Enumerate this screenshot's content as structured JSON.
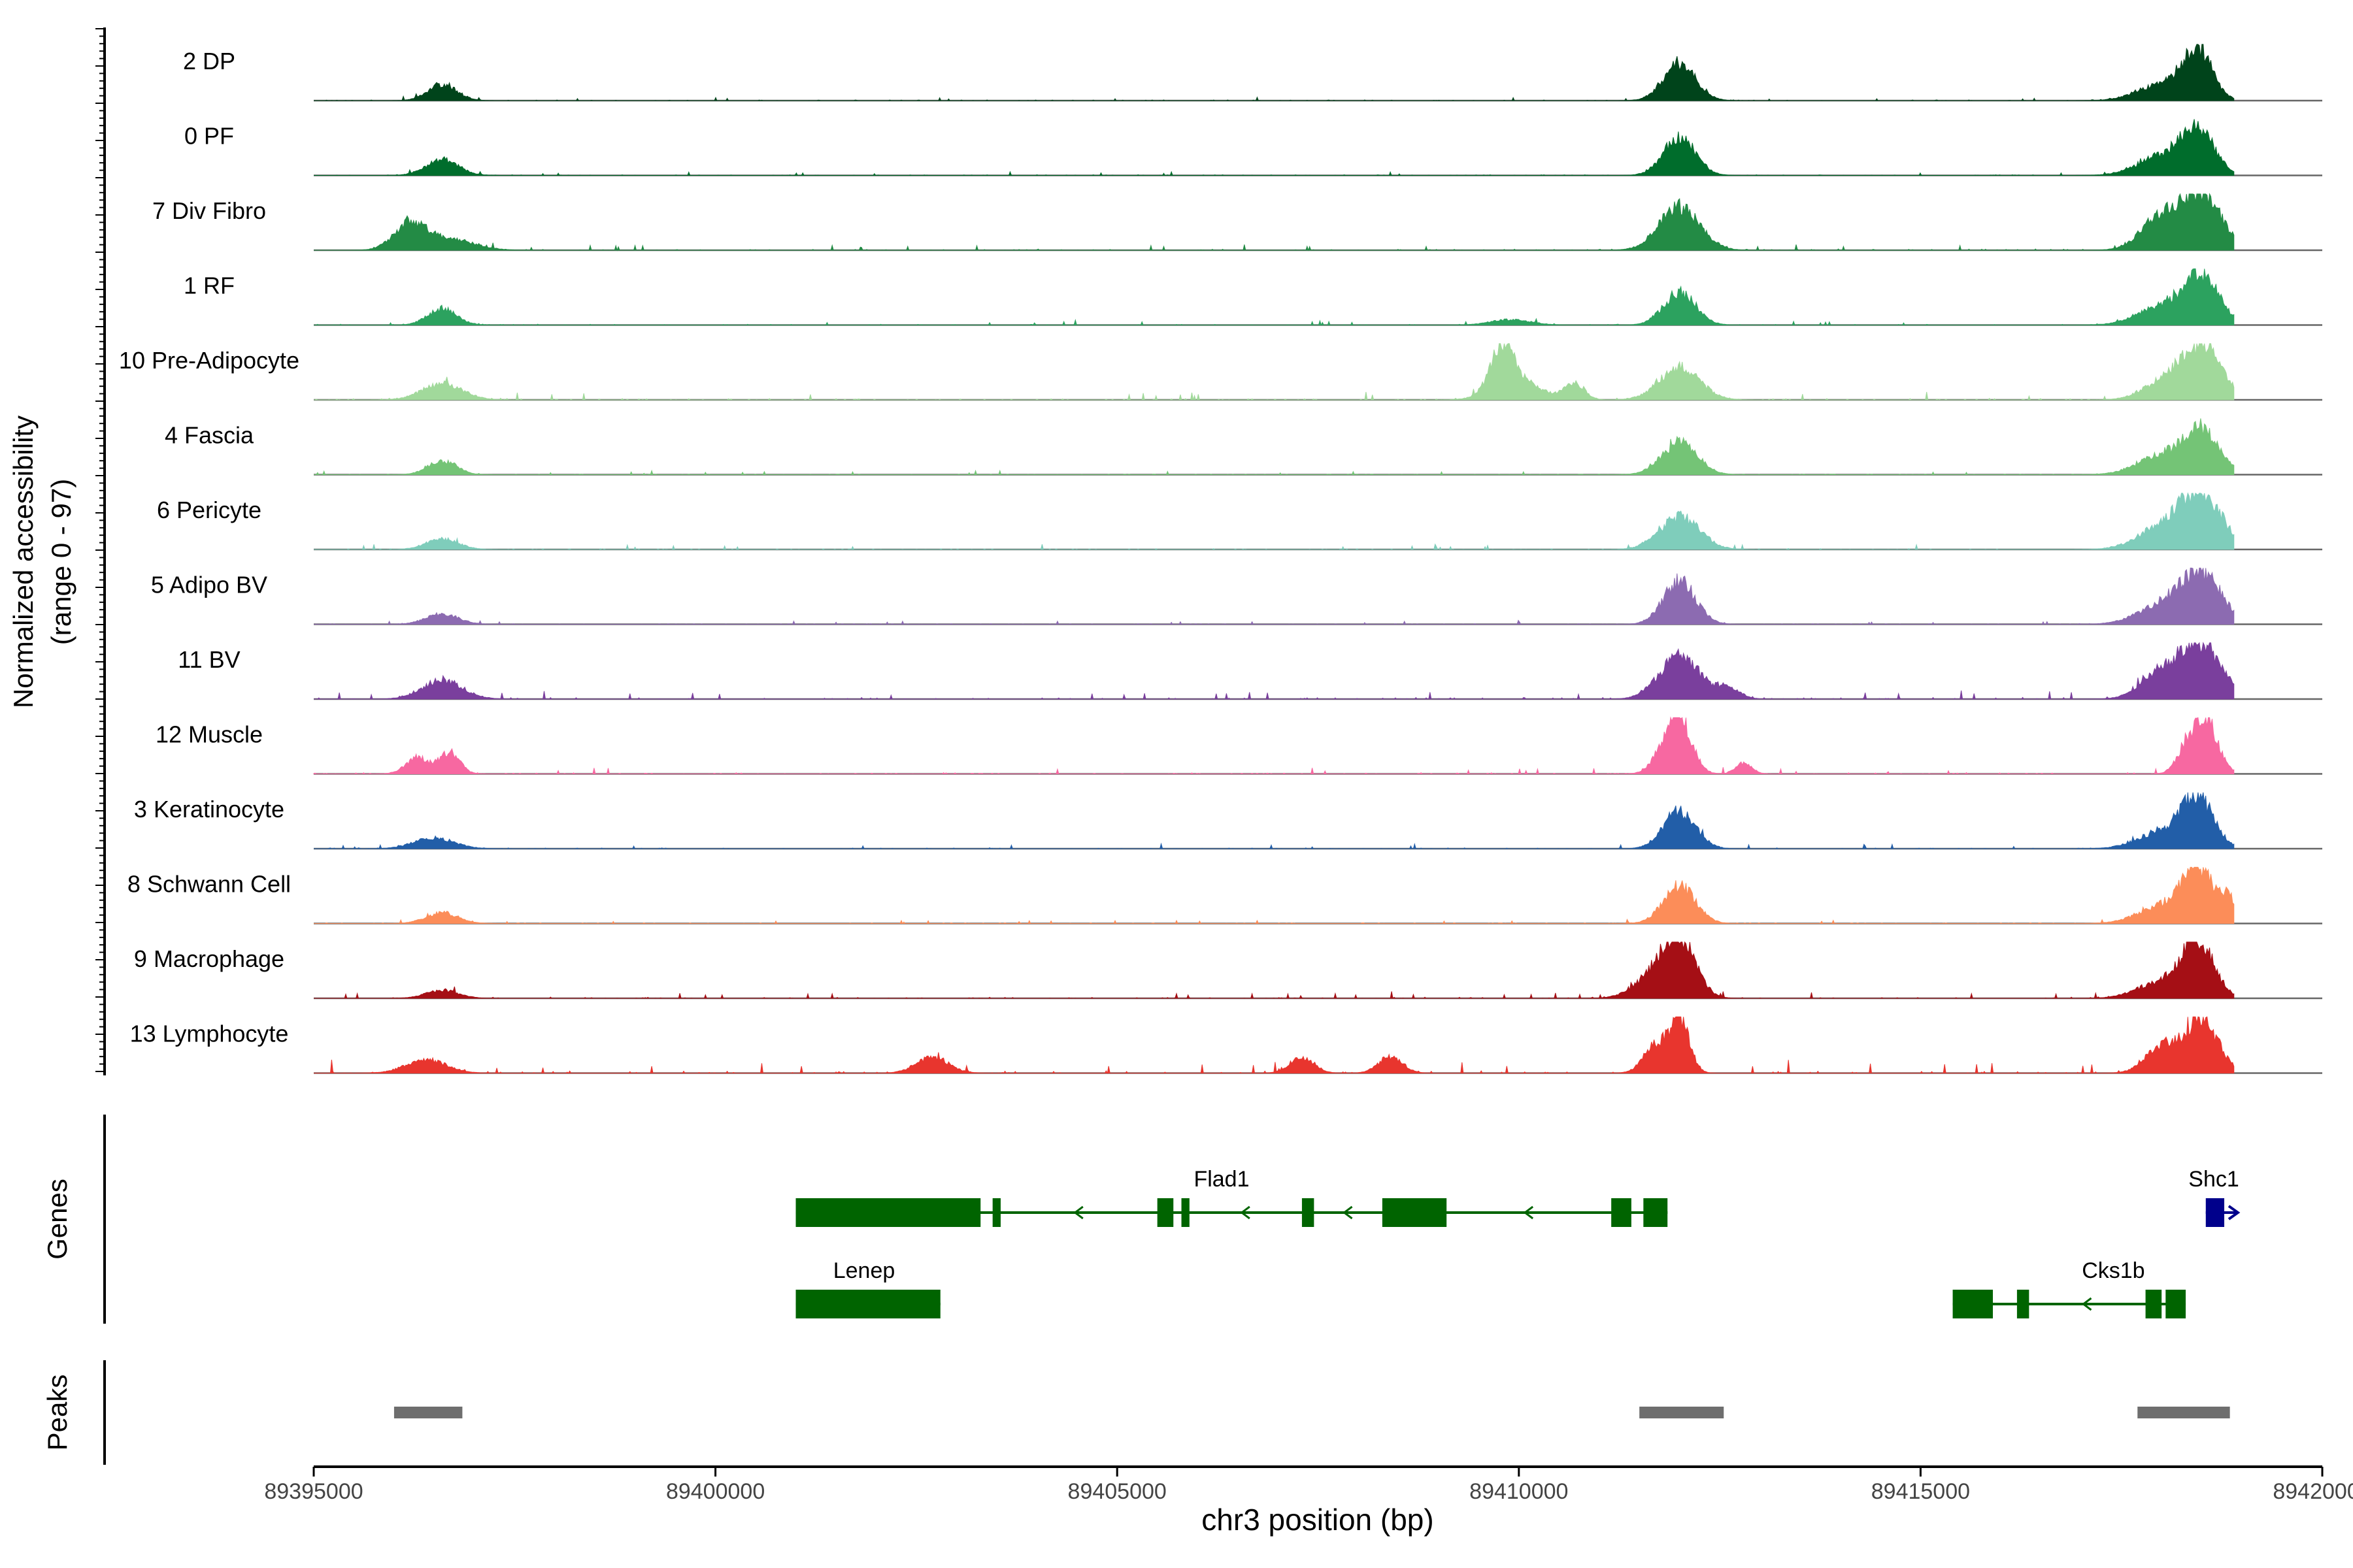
{
  "chart_data": {
    "type": "area",
    "title": "",
    "xlabel": "chr3 position (bp)",
    "ylabel_line1": "Normalized accessibility",
    "ylabel_line2": "(range 0 - 97)",
    "ylim": [
      0,
      97
    ],
    "xlim": [
      89395000,
      89420000
    ],
    "x_ticks": [
      89395000,
      89400000,
      89405000,
      89410000,
      89415000,
      89420000
    ],
    "x_tick_labels": [
      "89395000",
      "89400000",
      "89405000",
      "89410000",
      "89415000",
      "89420000"
    ],
    "track_labels": {
      "genes": "Genes",
      "peaks": "Peaks"
    },
    "coverage_end": 89418900,
    "tracks": [
      {
        "name": "2 DP",
        "color": "#00441b",
        "noise": 0.03,
        "peaks": [
          [
            89396600,
            180,
            0.3
          ],
          [
            89412000,
            200,
            0.7
          ],
          [
            89418000,
            300,
            0.3
          ],
          [
            89418450,
            180,
            0.9
          ]
        ]
      },
      {
        "name": "0 PF",
        "color": "#006d2c",
        "noise": 0.03,
        "peaks": [
          [
            89396600,
            200,
            0.3
          ],
          [
            89412000,
            200,
            0.7
          ],
          [
            89418000,
            300,
            0.35
          ],
          [
            89418450,
            200,
            0.85
          ]
        ]
      },
      {
        "name": "7 Div Fibro",
        "color": "#238b45",
        "noise": 0.05,
        "peaks": [
          [
            89396200,
            200,
            0.5
          ],
          [
            89396700,
            300,
            0.2
          ],
          [
            89412000,
            250,
            0.8
          ],
          [
            89418000,
            250,
            0.6
          ],
          [
            89418500,
            250,
            1.0
          ]
        ]
      },
      {
        "name": "1 RF",
        "color": "#2ca25f",
        "noise": 0.04,
        "peaks": [
          [
            89396600,
            180,
            0.3
          ],
          [
            89409900,
            250,
            0.1
          ],
          [
            89412000,
            200,
            0.6
          ],
          [
            89418000,
            300,
            0.35
          ],
          [
            89418500,
            220,
            0.85
          ]
        ]
      },
      {
        "name": "10 Pre-Adipocyte",
        "color": "#a1d99b",
        "noise": 0.06,
        "peaks": [
          [
            89396600,
            250,
            0.3
          ],
          [
            89409800,
            150,
            0.8
          ],
          [
            89410000,
            300,
            0.3
          ],
          [
            89410700,
            120,
            0.3
          ],
          [
            89412000,
            250,
            0.6
          ],
          [
            89418000,
            250,
            0.3
          ],
          [
            89418500,
            250,
            1.0
          ]
        ]
      },
      {
        "name": "4 Fascia",
        "color": "#74c476",
        "noise": 0.03,
        "peaks": [
          [
            89396600,
            180,
            0.25
          ],
          [
            89412000,
            220,
            0.6
          ],
          [
            89418000,
            300,
            0.35
          ],
          [
            89418500,
            220,
            0.8
          ]
        ]
      },
      {
        "name": "6 Pericyte",
        "color": "#7fcdbb",
        "noise": 0.04,
        "peaks": [
          [
            89396600,
            200,
            0.2
          ],
          [
            89412000,
            250,
            0.6
          ],
          [
            89418000,
            300,
            0.4
          ],
          [
            89418500,
            250,
            1.0
          ]
        ]
      },
      {
        "name": "5 Adipo BV",
        "color": "#8c6bb1",
        "noise": 0.03,
        "peaks": [
          [
            89396600,
            200,
            0.2
          ],
          [
            89412000,
            200,
            0.8
          ],
          [
            89418000,
            300,
            0.35
          ],
          [
            89418500,
            250,
            0.9
          ]
        ]
      },
      {
        "name": "11 BV",
        "color": "#7a3f9d",
        "noise": 0.07,
        "peaks": [
          [
            89396600,
            250,
            0.35
          ],
          [
            89412000,
            250,
            0.8
          ],
          [
            89412600,
            150,
            0.2
          ],
          [
            89418000,
            250,
            0.5
          ],
          [
            89418500,
            250,
            1.0
          ]
        ]
      },
      {
        "name": "12 Muscle",
        "color": "#f768a1",
        "noise": 0.05,
        "peaks": [
          [
            89396300,
            150,
            0.3
          ],
          [
            89396700,
            120,
            0.4
          ],
          [
            89411800,
            150,
            0.3
          ],
          [
            89412000,
            150,
            1.0
          ],
          [
            89412800,
            100,
            0.2
          ],
          [
            89418300,
            120,
            0.4
          ],
          [
            89418550,
            150,
            1.0
          ]
        ]
      },
      {
        "name": "3 Keratinocyte",
        "color": "#225ea8",
        "noise": 0.04,
        "peaks": [
          [
            89396500,
            250,
            0.2
          ],
          [
            89412000,
            200,
            0.7
          ],
          [
            89418000,
            300,
            0.3
          ],
          [
            89418450,
            200,
            0.9
          ]
        ]
      },
      {
        "name": "8 Schwann Cell",
        "color": "#fc8d59",
        "noise": 0.03,
        "peaks": [
          [
            89396600,
            200,
            0.2
          ],
          [
            89412000,
            200,
            0.7
          ],
          [
            89418000,
            300,
            0.3
          ],
          [
            89418450,
            200,
            1.0
          ],
          [
            89418850,
            100,
            0.4
          ]
        ]
      },
      {
        "name": "9 Macrophage",
        "color": "#a50f15",
        "noise": 0.05,
        "peaks": [
          [
            89396600,
            200,
            0.15
          ],
          [
            89411700,
            250,
            0.4
          ],
          [
            89412000,
            200,
            1.0
          ],
          [
            89418000,
            300,
            0.3
          ],
          [
            89418450,
            200,
            1.0
          ]
        ]
      },
      {
        "name": "13 Lymphocyte",
        "color": "#e8352e",
        "noise": 0.1,
        "peaks": [
          [
            89396400,
            250,
            0.25
          ],
          [
            89402700,
            200,
            0.3
          ],
          [
            89407300,
            150,
            0.3
          ],
          [
            89408400,
            150,
            0.3
          ],
          [
            89411700,
            150,
            0.5
          ],
          [
            89412000,
            120,
            1.0
          ],
          [
            89418000,
            200,
            0.5
          ],
          [
            89418500,
            200,
            1.0
          ]
        ]
      }
    ],
    "genes": [
      {
        "name": "Flad1",
        "color": "#006400",
        "strand": "-",
        "row": 0,
        "label_pos": 89406300,
        "start": 89401000,
        "end": 89411850,
        "exons": [
          [
            89401000,
            89403300
          ],
          [
            89403450,
            89403550
          ],
          [
            89405500,
            89405700
          ],
          [
            89405800,
            89405900
          ],
          [
            89407300,
            89407450
          ],
          [
            89408300,
            89409100
          ],
          [
            89411150,
            89411400
          ],
          [
            89411550,
            89411850
          ]
        ]
      },
      {
        "name": "Shc1",
        "color": "#00008b",
        "strand": "+",
        "row": 0,
        "label_pos": 89418650,
        "start": 89418550,
        "end": 89418950,
        "exons": [
          [
            89418550,
            89418780
          ]
        ]
      },
      {
        "name": "Lenep",
        "color": "#006400",
        "strand": "-",
        "row": 1,
        "label_pos": 89401850,
        "start": 89401000,
        "end": 89402800,
        "exons": [
          [
            89401000,
            89402800
          ]
        ]
      },
      {
        "name": "Cks1b",
        "color": "#006400",
        "strand": "-",
        "row": 1,
        "label_pos": 89417400,
        "start": 89415400,
        "end": 89418300,
        "exons": [
          [
            89415400,
            89415900
          ],
          [
            89416200,
            89416350
          ],
          [
            89417800,
            89418000
          ],
          [
            89418050,
            89418300
          ]
        ]
      }
    ],
    "peaks": [
      [
        89396000,
        89396850
      ],
      [
        89411500,
        89412550
      ],
      [
        89417700,
        89418850
      ]
    ]
  }
}
